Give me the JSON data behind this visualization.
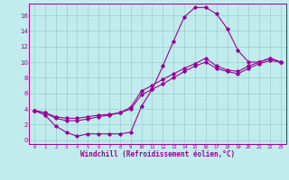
{
  "xlabel": "Windchill (Refroidissement éolien,°C)",
  "bg_color": "#c0ecee",
  "line_color": "#990099",
  "grid_color": "#a0cccc",
  "xlim": [
    -0.5,
    23.5
  ],
  "ylim": [
    -0.5,
    17.5
  ],
  "xticks": [
    0,
    1,
    2,
    3,
    4,
    5,
    6,
    7,
    8,
    9,
    10,
    11,
    12,
    13,
    14,
    15,
    16,
    17,
    18,
    19,
    20,
    21,
    22,
    23
  ],
  "yticks": [
    0,
    2,
    4,
    6,
    8,
    10,
    12,
    14,
    16
  ],
  "line1_x": [
    0,
    1,
    2,
    3,
    4,
    5,
    6,
    7,
    8,
    9,
    10,
    11,
    12,
    13,
    14,
    15,
    16,
    17,
    18,
    19,
    20,
    21,
    22,
    23
  ],
  "line1_y": [
    3.8,
    3.2,
    1.8,
    1.0,
    0.5,
    0.8,
    0.8,
    0.8,
    0.8,
    1.0,
    4.3,
    6.5,
    9.5,
    12.7,
    15.8,
    17.0,
    17.0,
    16.2,
    14.3,
    11.5,
    10.0,
    10.0,
    10.5,
    10.0
  ],
  "line2_x": [
    0,
    1,
    2,
    3,
    4,
    5,
    6,
    7,
    8,
    9,
    10,
    11,
    12,
    13,
    14,
    15,
    16,
    17,
    18,
    19,
    20,
    21,
    22,
    23
  ],
  "line2_y": [
    3.8,
    3.5,
    3.0,
    2.8,
    2.8,
    3.0,
    3.2,
    3.3,
    3.5,
    4.2,
    6.3,
    7.0,
    7.8,
    8.5,
    9.2,
    9.8,
    10.5,
    9.5,
    9.0,
    8.8,
    9.5,
    10.0,
    10.5,
    10.0
  ],
  "line3_x": [
    0,
    1,
    2,
    3,
    4,
    5,
    6,
    7,
    8,
    9,
    10,
    11,
    12,
    13,
    14,
    15,
    16,
    17,
    18,
    19,
    20,
    21,
    22,
    23
  ],
  "line3_y": [
    3.8,
    3.5,
    2.8,
    2.5,
    2.5,
    2.7,
    3.0,
    3.2,
    3.5,
    4.0,
    5.8,
    6.5,
    7.2,
    8.0,
    8.8,
    9.5,
    10.0,
    9.2,
    8.8,
    8.5,
    9.2,
    9.8,
    10.2,
    10.0
  ]
}
